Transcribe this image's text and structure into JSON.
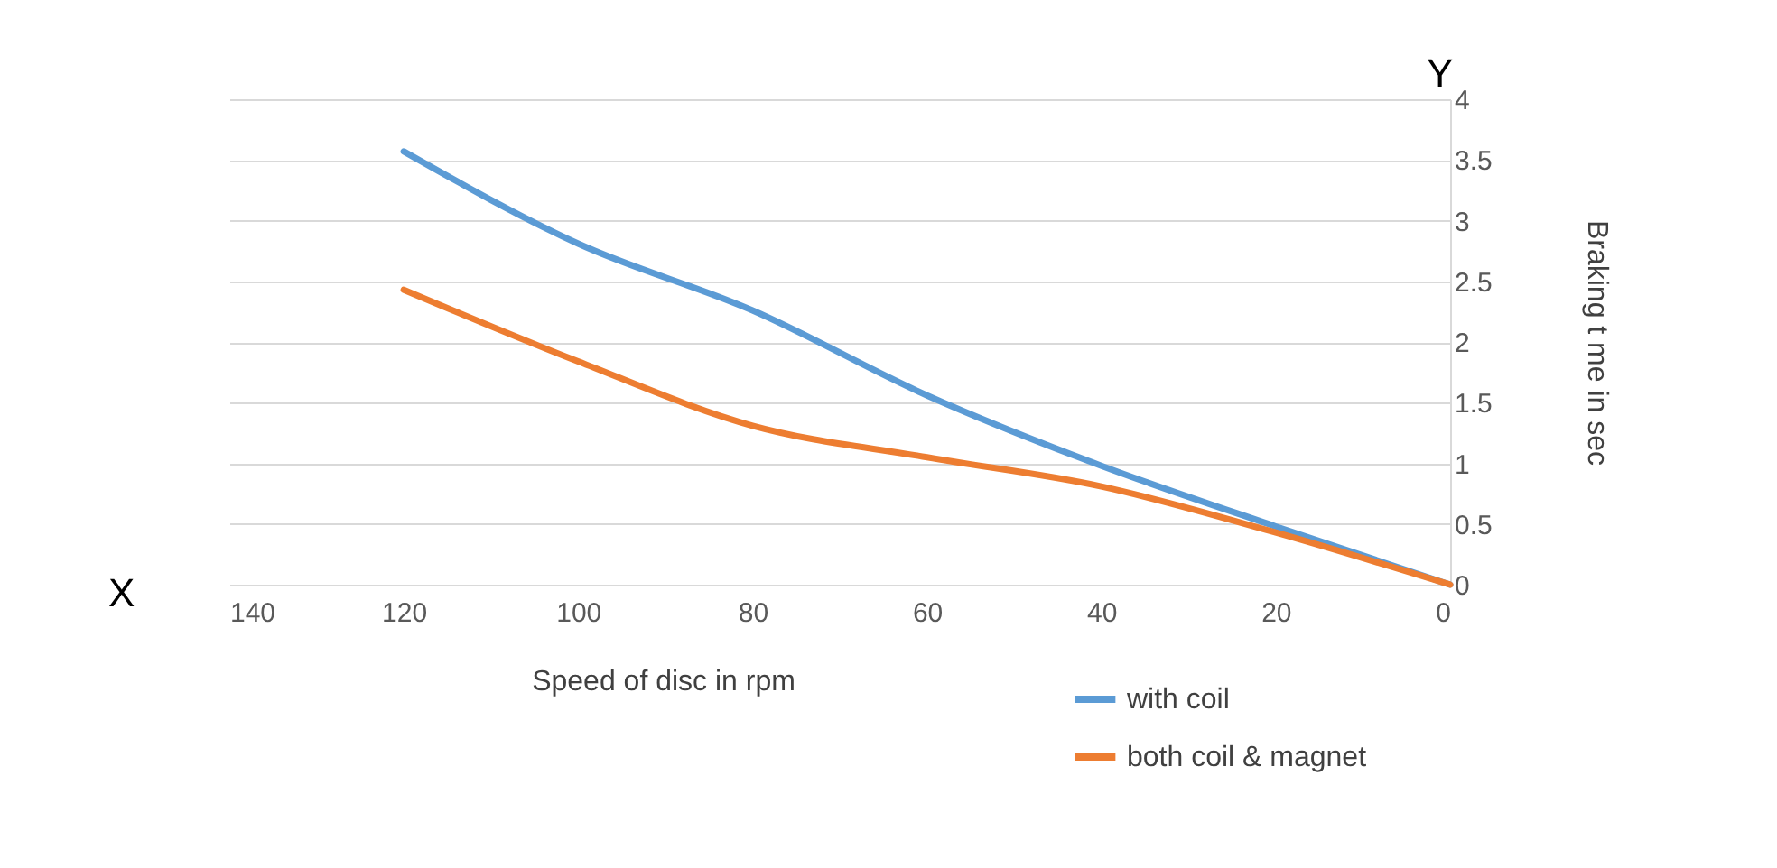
{
  "chart_data": {
    "type": "line",
    "xlabel": "Speed of disc in rpm",
    "ylabel": "Braking t me in sec",
    "x": [
      120,
      100,
      80,
      60,
      40,
      20,
      0
    ],
    "series": [
      {
        "name": "with coil",
        "color": "#5b9bd5",
        "values": [
          3.57,
          2.81,
          2.26,
          1.56,
          0.98,
          0.48,
          0
        ]
      },
      {
        "name": "both coil & magnet",
        "color": "#ed7d31",
        "values": [
          2.43,
          1.84,
          1.31,
          1.05,
          0.81,
          0.43,
          0
        ]
      }
    ],
    "xlim": [
      140,
      0
    ],
    "xticks": [
      140,
      120,
      100,
      80,
      60,
      40,
      20,
      0
    ],
    "ylim": [
      0,
      4
    ],
    "yticks": [
      0,
      0.5,
      1,
      1.5,
      2,
      2.5,
      3,
      3.5,
      4
    ],
    "grid": "y",
    "legend": "bottom right",
    "marker": "none",
    "line_style": "solid",
    "annotations": [
      "X",
      "Y"
    ]
  }
}
